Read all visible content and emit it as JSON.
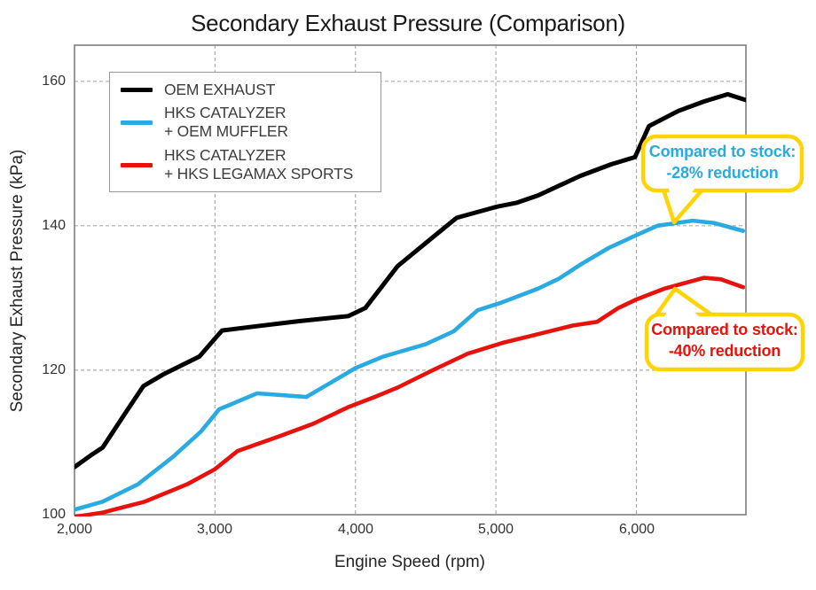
{
  "chart_data": {
    "type": "line",
    "title": "Secondary Exhaust Pressure (Comparison)",
    "xlabel": "Engine Speed (rpm)",
    "ylabel": "Secondary Exhaust Pressure (kPa)",
    "xlim": [
      2000,
      6780
    ],
    "ylim": [
      100,
      165
    ],
    "grid": true,
    "xticks": [
      {
        "value": 2000,
        "label": "2,000"
      },
      {
        "value": 3000,
        "label": "3,000"
      },
      {
        "value": 4000,
        "label": "4,000"
      },
      {
        "value": 5000,
        "label": "5,000"
      },
      {
        "value": 6000,
        "label": "6,000"
      }
    ],
    "yticks": [
      {
        "value": 100,
        "label": "100"
      },
      {
        "value": 120,
        "label": "120"
      },
      {
        "value": 140,
        "label": "140"
      },
      {
        "value": 160,
        "label": "160"
      }
    ],
    "legend": {
      "position": "top-left",
      "entries": [
        {
          "lines": [
            "OEM EXHAUST"
          ],
          "color": "#000000"
        },
        {
          "lines": [
            "HKS CATALYZER",
            "+ OEM MUFFLER"
          ],
          "color": "#29ABE2"
        },
        {
          "lines": [
            "HKS CATALYZER",
            "+ HKS LEGAMAX SPORTS"
          ],
          "color": "#E8120C"
        }
      ]
    },
    "series": [
      {
        "name": "OEM EXHAUST",
        "color": "#000000",
        "points": [
          [
            2000,
            106.6
          ],
          [
            2115,
            108.2
          ],
          [
            2200,
            109.3
          ],
          [
            2360,
            114.0
          ],
          [
            2490,
            117.8
          ],
          [
            2630,
            119.4
          ],
          [
            2890,
            121.9
          ],
          [
            3050,
            125.5
          ],
          [
            3300,
            126.1
          ],
          [
            3600,
            126.8
          ],
          [
            3950,
            127.5
          ],
          [
            4070,
            128.6
          ],
          [
            4300,
            134.4
          ],
          [
            4500,
            137.6
          ],
          [
            4720,
            141.1
          ],
          [
            5000,
            142.6
          ],
          [
            5150,
            143.2
          ],
          [
            5300,
            144.2
          ],
          [
            5600,
            146.9
          ],
          [
            5820,
            148.5
          ],
          [
            5990,
            149.5
          ],
          [
            6090,
            153.8
          ],
          [
            6300,
            155.9
          ],
          [
            6480,
            157.2
          ],
          [
            6650,
            158.2
          ],
          [
            6780,
            157.4
          ]
        ]
      },
      {
        "name": "HKS CATALYZER + OEM MUFFLER",
        "color": "#29ABE2",
        "points": [
          [
            2000,
            100.7
          ],
          [
            2200,
            101.8
          ],
          [
            2450,
            104.2
          ],
          [
            2700,
            108.0
          ],
          [
            2900,
            111.5
          ],
          [
            3030,
            114.6
          ],
          [
            3300,
            116.8
          ],
          [
            3650,
            116.3
          ],
          [
            3800,
            118.0
          ],
          [
            4000,
            120.3
          ],
          [
            4200,
            121.9
          ],
          [
            4500,
            123.6
          ],
          [
            4700,
            125.4
          ],
          [
            4870,
            128.3
          ],
          [
            5030,
            129.3
          ],
          [
            5300,
            131.3
          ],
          [
            5450,
            132.7
          ],
          [
            5600,
            134.6
          ],
          [
            5800,
            136.9
          ],
          [
            6000,
            138.7
          ],
          [
            6150,
            140.0
          ],
          [
            6400,
            140.7
          ],
          [
            6550,
            140.4
          ],
          [
            6760,
            139.3
          ]
        ]
      },
      {
        "name": "HKS CATALYZER + HKS LEGAMAX SPORTS",
        "color": "#E8120C",
        "points": [
          [
            2000,
            99.7
          ],
          [
            2200,
            100.3
          ],
          [
            2500,
            101.8
          ],
          [
            2800,
            104.2
          ],
          [
            3000,
            106.3
          ],
          [
            3160,
            108.8
          ],
          [
            3450,
            110.8
          ],
          [
            3700,
            112.6
          ],
          [
            3950,
            114.9
          ],
          [
            4150,
            116.4
          ],
          [
            4300,
            117.6
          ],
          [
            4550,
            120.0
          ],
          [
            4800,
            122.3
          ],
          [
            5050,
            123.8
          ],
          [
            5300,
            125.0
          ],
          [
            5550,
            126.2
          ],
          [
            5720,
            126.7
          ],
          [
            5870,
            128.6
          ],
          [
            6000,
            129.8
          ],
          [
            6200,
            131.3
          ],
          [
            6480,
            132.8
          ],
          [
            6600,
            132.6
          ],
          [
            6760,
            131.5
          ]
        ]
      }
    ],
    "annotations": [
      {
        "lines": [
          "Compared to stock:",
          "-28% reduction"
        ],
        "text_color": "#29ABE2",
        "border_color": "#FFD400"
      },
      {
        "lines": [
          "Compared to stock:",
          "-40% reduction"
        ],
        "text_color": "#E8120C",
        "border_color": "#FFD400"
      }
    ]
  }
}
